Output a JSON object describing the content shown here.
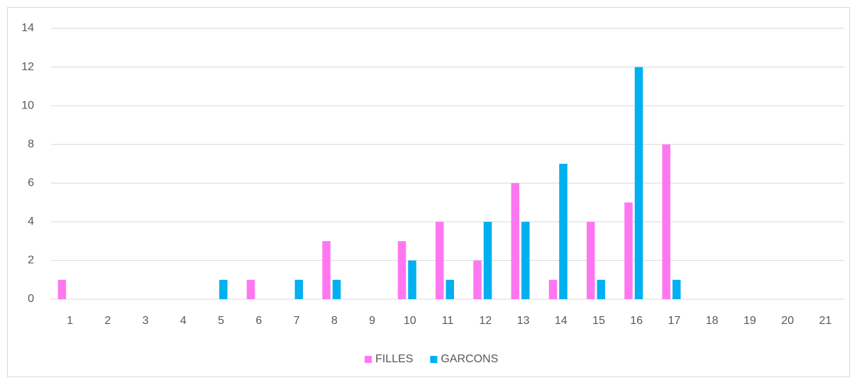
{
  "chart_data": {
    "type": "bar",
    "categories": [
      "1",
      "2",
      "3",
      "4",
      "5",
      "6",
      "7",
      "8",
      "9",
      "10",
      "11",
      "12",
      "13",
      "14",
      "15",
      "16",
      "17",
      "18",
      "19",
      "20",
      "21"
    ],
    "series": [
      {
        "name": "FILLES",
        "color": "#ff77f0",
        "values": [
          1,
          0,
          0,
          0,
          0,
          1,
          0,
          3,
          0,
          3,
          4,
          2,
          6,
          1,
          4,
          5,
          8,
          0,
          0,
          0,
          0
        ]
      },
      {
        "name": "GARCONS",
        "color": "#00b0f0",
        "values": [
          0,
          0,
          0,
          0,
          1,
          0,
          1,
          1,
          0,
          2,
          1,
          4,
          4,
          7,
          1,
          12,
          1,
          0,
          0,
          0,
          0
        ]
      }
    ],
    "ylim": [
      0,
      14
    ],
    "yticks": [
      0,
      2,
      4,
      6,
      8,
      10,
      12,
      14
    ],
    "grid": true,
    "legend": "bottom"
  }
}
